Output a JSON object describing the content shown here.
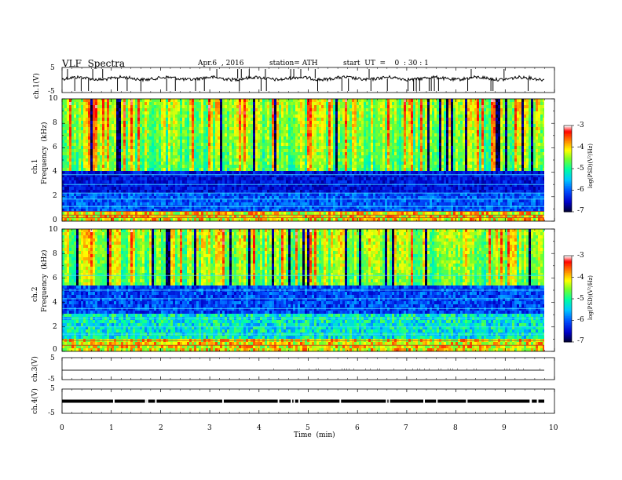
{
  "header": {
    "title": "VLF  Spectra",
    "date": "Apr.6  , 2016",
    "station": "station= ATH",
    "start": "start  UT  =    0  : 30 : 1"
  },
  "colorbar": {
    "label": "log(PSD)(V²/Hz)",
    "ticks": [
      "-3",
      "-4",
      "-5",
      "-6",
      "-7"
    ]
  },
  "chart_data": [
    {
      "type": "line",
      "ylabel": "ch.1(V)",
      "yticks": [
        "5",
        "-5"
      ],
      "ylim": [
        -5,
        5
      ],
      "xlim": [
        0,
        10
      ],
      "approx_level": 0.4,
      "description_values": "noisy waveform with spikes across 0-9.8 min"
    },
    {
      "type": "heatmap",
      "ylabel": "ch.1\nFrequency  (kHz)",
      "ylabel_top": "ch.1",
      "ylabel_bottom": "Frequency  (kHz)",
      "yticks": [
        "10",
        "8",
        "6",
        "4",
        "2",
        "0"
      ],
      "ylim": [
        0,
        10
      ],
      "xlim": [
        0,
        9.8
      ],
      "zlim": [
        -7,
        -3
      ]
    },
    {
      "type": "heatmap",
      "ylabel_top": "ch.2",
      "ylabel_bottom": "Frequency  (kHz)",
      "yticks": [
        "10",
        "8",
        "6",
        "4",
        "2",
        "0"
      ],
      "ylim": [
        0,
        10
      ],
      "xlim": [
        0,
        9.8
      ],
      "zlim": [
        -7,
        -3
      ]
    },
    {
      "type": "line",
      "ylabel": "ch.3(V)",
      "yticks": [
        "5",
        "-5"
      ],
      "ylim": [
        -5,
        5
      ],
      "xlim": [
        0,
        10
      ]
    },
    {
      "type": "line",
      "ylabel": "ch.4(V)",
      "yticks": [
        "5",
        "-5"
      ],
      "ylim": [
        -5,
        5
      ],
      "xlim": [
        0,
        10
      ]
    }
  ],
  "xaxis": {
    "label": "Time  (min)",
    "ticks": [
      "0",
      "1",
      "2",
      "3",
      "4",
      "5",
      "6",
      "7",
      "8",
      "9",
      "10"
    ]
  }
}
